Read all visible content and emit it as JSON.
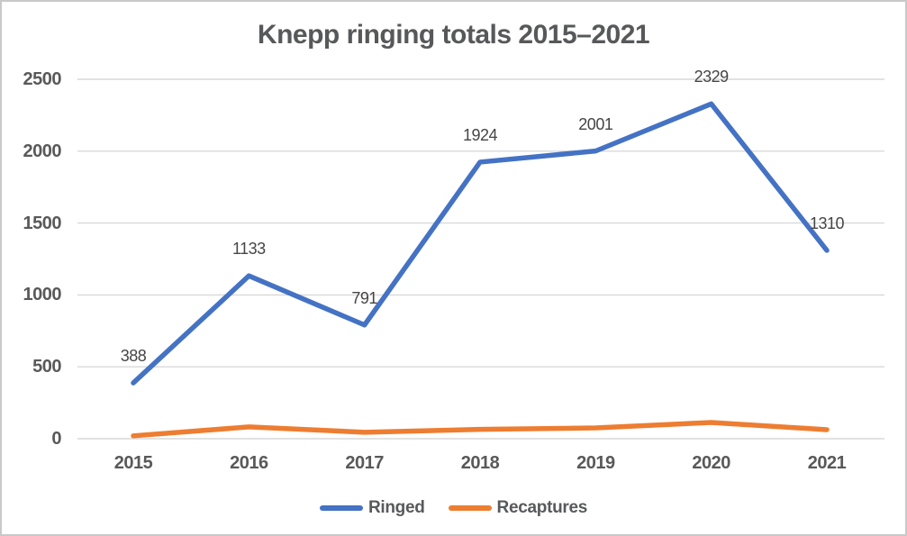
{
  "chart_data": {
    "type": "line",
    "title": "Knepp ringing totals 2015–2021",
    "categories": [
      "2015",
      "2016",
      "2017",
      "2018",
      "2019",
      "2020",
      "2021"
    ],
    "series": [
      {
        "name": "Ringed",
        "color": "#4472C4",
        "values": [
          388,
          1133,
          791,
          1924,
          2001,
          2329,
          1310
        ],
        "data_labels": true
      },
      {
        "name": "Recaptures",
        "color": "#ED7D31",
        "values": [
          20,
          82,
          45,
          65,
          75,
          113,
          63
        ],
        "data_labels": false
      }
    ],
    "ylim": [
      0,
      2500
    ],
    "yticks": [
      0,
      500,
      1000,
      1500,
      2000,
      2500
    ],
    "xlabel": "",
    "ylabel": "",
    "grid": true,
    "legend_position": "bottom"
  },
  "colors": {
    "title_text": "#57585A",
    "axis_text": "#595959",
    "data_label_text": "#454545",
    "legend_text": "#58595B",
    "gridline": "#D9D9D9",
    "frame_border": "#C9C9C9",
    "background": "#FFFFFF",
    "series_ringed": "#4472C4",
    "series_recaptures": "#ED7D31"
  }
}
